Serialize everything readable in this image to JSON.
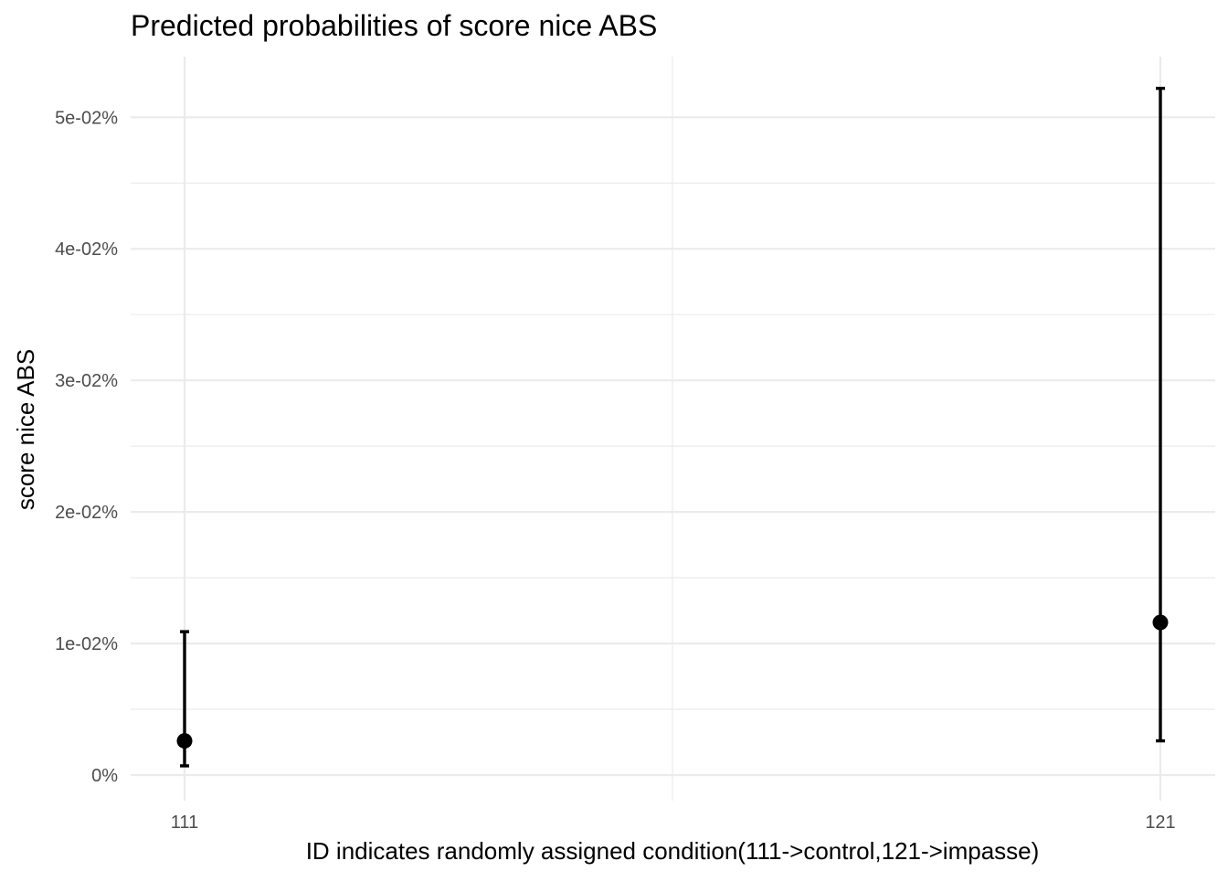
{
  "chart_data": {
    "type": "scatter",
    "title": "Predicted probabilities of score nice ABS",
    "xlabel": "ID indicates randomly assigned condition(111->control,121->impasse)",
    "ylabel": "score nice ABS",
    "categories": [
      "111",
      "121"
    ],
    "y_unit": "percent",
    "ylim": [
      -0.002,
      0.0545
    ],
    "y_ticks": [
      0,
      0.01,
      0.02,
      0.03,
      0.04,
      0.05
    ],
    "y_tick_labels": [
      "0%",
      "1e-02%",
      "2e-02%",
      "3e-02%",
      "4e-02%",
      "5e-02%"
    ],
    "grid": true,
    "legend": "none",
    "points": [
      {
        "x": "111",
        "y": 0.0026,
        "ymin": 0.0007,
        "ymax": 0.0109
      },
      {
        "x": "121",
        "y": 0.0116,
        "ymin": 0.0026,
        "ymax": 0.0522
      }
    ],
    "colors": {
      "points": "#000000",
      "grid": "#ebebeb",
      "tick_text": "#4d4d4d"
    }
  }
}
